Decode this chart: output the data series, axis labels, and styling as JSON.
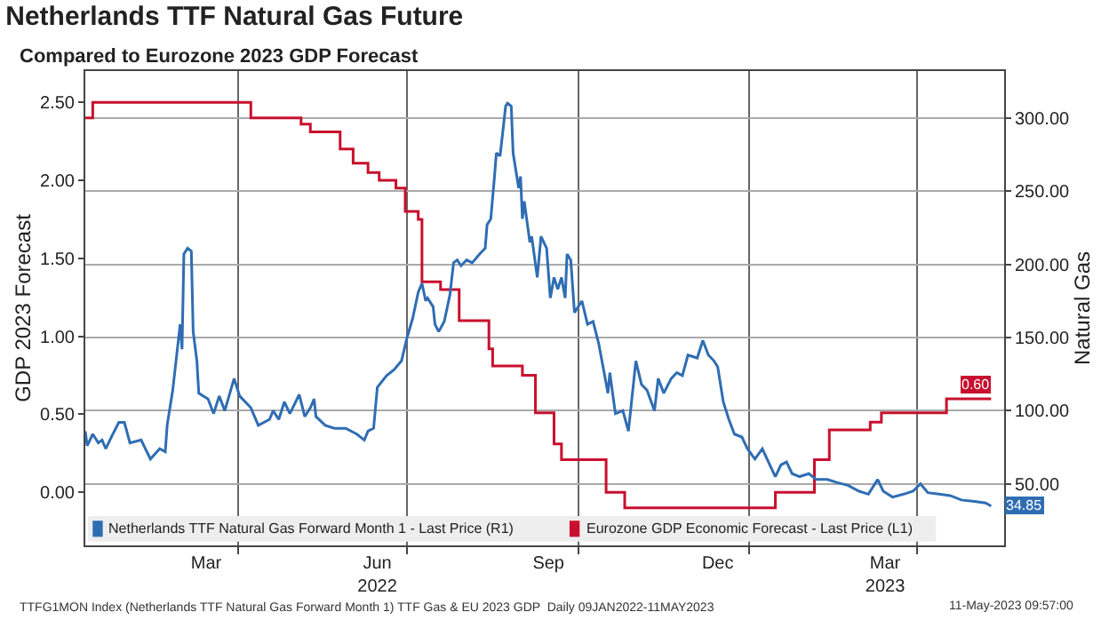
{
  "chart_data": {
    "type": "line",
    "title": "Netherlands TTF Natural Gas Future",
    "subtitle": "Compared to Eurozone 2023 GDP Forecast",
    "ylabel": "GDP 2023 Forecast",
    "y2label": "Natural Gas",
    "xlim": [
      "2022-01-09",
      "2023-05-18"
    ],
    "xticks": [
      {
        "value": "2022-03-15",
        "label": "Mar"
      },
      {
        "value": "2022-06-15",
        "label": "Jun\n2022"
      },
      {
        "value": "2022-09-15",
        "label": "Sep"
      },
      {
        "value": "2022-12-15",
        "label": "Dec"
      },
      {
        "value": "2023-03-15",
        "label": "Mar\n2023"
      },
      {
        "value": "2022-04-01",
        "label": null
      },
      {
        "value": "2022-07-01",
        "label": null
      },
      {
        "value": "2022-10-01",
        "label": null
      },
      {
        "value": "2023-01-01",
        "label": null
      },
      {
        "value": "2023-04-01",
        "label": null
      }
    ],
    "ylim": [
      -0.34,
      2.7
    ],
    "yticks": [
      {
        "value": 0,
        "label": "0.00"
      },
      {
        "value": 0.5,
        "label": "0.50"
      },
      {
        "value": 1,
        "label": "1.00"
      },
      {
        "value": 1.5,
        "label": "1.50"
      },
      {
        "value": 2,
        "label": "2.00"
      },
      {
        "value": 2.5,
        "label": "2.50"
      }
    ],
    "y2lim": [
      8,
      332
    ],
    "y2ticks": [
      {
        "value": 50,
        "label": "50.00"
      },
      {
        "value": 100,
        "label": "100.00"
      },
      {
        "value": 150,
        "label": "150.00"
      },
      {
        "value": 200,
        "label": "200.00"
      },
      {
        "value": 250,
        "label": "250.00"
      },
      {
        "value": 300,
        "label": "300.00"
      }
    ],
    "grid": true,
    "legend": "bottom",
    "series": [
      {
        "name": "Netherlands TTF Natural Gas Forward Month 1 - Last Price (R1)",
        "color": "#2f6db3",
        "axis": "y2",
        "x": [
          "2022-01-09",
          "2022-01-10",
          "2022-01-13",
          "2022-01-16",
          "2022-01-18",
          "2022-01-20",
          "2022-01-23",
          "2022-01-27",
          "2022-01-30",
          "2022-02-02",
          "2022-02-08",
          "2022-02-13",
          "2022-02-18",
          "2022-02-21",
          "2022-02-22",
          "2022-02-25",
          "2022-03-01",
          "2022-03-02",
          "2022-03-03",
          "2022-03-05",
          "2022-03-07",
          "2022-03-08",
          "2022-03-10",
          "2022-03-11",
          "2022-03-16",
          "2022-03-19",
          "2022-03-22",
          "2022-03-25",
          "2022-03-30",
          "2022-04-02",
          "2022-04-08",
          "2022-04-12",
          "2022-04-18",
          "2022-04-20",
          "2022-04-23",
          "2022-04-26",
          "2022-04-29",
          "2022-05-04",
          "2022-05-07",
          "2022-05-10",
          "2022-05-12",
          "2022-05-13",
          "2022-05-18",
          "2022-05-23",
          "2022-05-29",
          "2022-06-04",
          "2022-06-08",
          "2022-06-10",
          "2022-06-13",
          "2022-06-15",
          "2022-06-20",
          "2022-06-24",
          "2022-06-28",
          "2022-07-01",
          "2022-07-04",
          "2022-07-07",
          "2022-07-09",
          "2022-07-11",
          "2022-07-12",
          "2022-07-15",
          "2022-07-16",
          "2022-07-18",
          "2022-07-21",
          "2022-07-24",
          "2022-07-26",
          "2022-07-28",
          "2022-07-30",
          "2022-08-02",
          "2022-08-05",
          "2022-08-09",
          "2022-08-12",
          "2022-08-13",
          "2022-08-15",
          "2022-08-17",
          "2022-08-18",
          "2022-08-20",
          "2022-08-23",
          "2022-08-24",
          "2022-08-26",
          "2022-08-27",
          "2022-08-30",
          "2022-08-31",
          "2022-09-01",
          "2022-09-02",
          "2022-09-05",
          "2022-09-06",
          "2022-09-09",
          "2022-09-11",
          "2022-09-14",
          "2022-09-16",
          "2022-09-18",
          "2022-09-20",
          "2022-09-22",
          "2022-09-24",
          "2022-09-25",
          "2022-09-27",
          "2022-09-29",
          "2022-10-03",
          "2022-10-06",
          "2022-10-09",
          "2022-10-12",
          "2022-10-17",
          "2022-10-18",
          "2022-10-21",
          "2022-10-25",
          "2022-10-28",
          "2022-11-01",
          "2022-11-04",
          "2022-11-07",
          "2022-11-11",
          "2022-11-13",
          "2022-11-16",
          "2022-11-20",
          "2022-11-23",
          "2022-11-26",
          "2022-11-29",
          "2022-12-04",
          "2022-12-07",
          "2022-12-10",
          "2022-12-13",
          "2022-12-15",
          "2022-12-18",
          "2022-12-21",
          "2022-12-24",
          "2022-12-28",
          "2022-12-31",
          "2023-01-04",
          "2023-01-08",
          "2023-01-12",
          "2023-01-15",
          "2023-01-18",
          "2023-01-21",
          "2023-01-24",
          "2023-01-28",
          "2023-02-02",
          "2023-02-06",
          "2023-02-12",
          "2023-02-17",
          "2023-02-23",
          "2023-03-01",
          "2023-03-06",
          "2023-03-11",
          "2023-03-14",
          "2023-03-19",
          "2023-03-25",
          "2023-03-30",
          "2023-04-03",
          "2023-04-07",
          "2023-04-13",
          "2023-04-19",
          "2023-04-25",
          "2023-05-02",
          "2023-05-08",
          "2023-05-11"
        ],
        "values": [
          86,
          76,
          84,
          78,
          80,
          74,
          82,
          92,
          92,
          78,
          80,
          67,
          74,
          72,
          90,
          114,
          159,
          142,
          207,
          211,
          209,
          154,
          134,
          112,
          108,
          98,
          110,
          100,
          122,
          110,
          102,
          90,
          94,
          100,
          94,
          106,
          98,
          111,
          96,
          102,
          108,
          96,
          90,
          88,
          88,
          84,
          80,
          86,
          88,
          116,
          124,
          128,
          134,
          150,
          163,
          181,
          187,
          175,
          177,
          171,
          159,
          154,
          161,
          179,
          201,
          203,
          199,
          203,
          201,
          207,
          211,
          227,
          231,
          260,
          276,
          274,
          308,
          310,
          308,
          276,
          252,
          260,
          231,
          243,
          215,
          219,
          191,
          219,
          211,
          177,
          191,
          183,
          191,
          177,
          207,
          203,
          167,
          175,
          159,
          161,
          146,
          112,
          126,
          98,
          100,
          86,
          134,
          118,
          114,
          100,
          122,
          112,
          122,
          126,
          124,
          138,
          136,
          148,
          138,
          134,
          130,
          106,
          94,
          84,
          82,
          74,
          67,
          74,
          63,
          55,
          63,
          65,
          57,
          55,
          57,
          53,
          53,
          51,
          49,
          45,
          43,
          53,
          45,
          41,
          43,
          45,
          50,
          44,
          43,
          42,
          39,
          38,
          37,
          34.85
        ],
        "value_labels": [
          null,
          null,
          null,
          null,
          null,
          null,
          null,
          null,
          null,
          null,
          null,
          null,
          null,
          null,
          null,
          null,
          null,
          null,
          null,
          null,
          null,
          null,
          null,
          null,
          null,
          null,
          null,
          null,
          null,
          null,
          null,
          null,
          null,
          null,
          null,
          null,
          null,
          null,
          null,
          null,
          null,
          null,
          null,
          null,
          null,
          null,
          null,
          null,
          null,
          null,
          null,
          null,
          null,
          null,
          null,
          null,
          null,
          null,
          null,
          null,
          null,
          null,
          null,
          null,
          null,
          null,
          null,
          null,
          null,
          null,
          null,
          null,
          null,
          null,
          null,
          null,
          null,
          null,
          null,
          null,
          null,
          null,
          null,
          null,
          null,
          null,
          null,
          null,
          null,
          null,
          null,
          null,
          null,
          null,
          null,
          null,
          null,
          null,
          null,
          null,
          null,
          null,
          null,
          null,
          null,
          null,
          null,
          null,
          null,
          null,
          null,
          null,
          null,
          null,
          null,
          null,
          null,
          null,
          null,
          null,
          null,
          null,
          null,
          null,
          null,
          null,
          null,
          null,
          null,
          null,
          null,
          null,
          null,
          null,
          null,
          null,
          null,
          null,
          null,
          null,
          null,
          null,
          null,
          null,
          null,
          null,
          null,
          null,
          null,
          null,
          null,
          null,
          null,
          "34.85"
        ]
      },
      {
        "name": "Eurozone GDP Economic Forecast - Last Price (L1)",
        "color": "#c8102e",
        "type": "step",
        "x": [
          "2022-01-09",
          "2022-01-13",
          "2022-04-08",
          "2022-05-05",
          "2022-05-10",
          "2022-05-26",
          "2022-06-02",
          "2022-06-10",
          "2022-06-16",
          "2022-06-25",
          "2022-06-30",
          "2022-07-07",
          "2022-07-09",
          "2022-07-19",
          "2022-07-29",
          "2022-08-14",
          "2022-08-16",
          "2022-09-01",
          "2022-09-08",
          "2022-09-18",
          "2022-09-22",
          "2022-10-16",
          "2022-10-26",
          "2023-01-15",
          "2023-02-05",
          "2023-02-13",
          "2023-03-07",
          "2023-03-13",
          "2023-04-17",
          "2023-05-11"
        ],
        "values": [
          2.4,
          2.5,
          2.4,
          2.36,
          2.31,
          2.2,
          2.11,
          2.05,
          2.0,
          1.95,
          1.8,
          1.75,
          1.35,
          1.3,
          1.1,
          0.92,
          0.81,
          0.75,
          0.51,
          0.31,
          0.21,
          0.0,
          -0.1,
          0.0,
          0.21,
          0.4,
          0.45,
          0.51,
          0.6,
          0.6
        ],
        "value_labels": [
          null,
          null,
          null,
          null,
          null,
          null,
          null,
          null,
          null,
          null,
          null,
          null,
          null,
          null,
          null,
          null,
          null,
          null,
          null,
          null,
          null,
          null,
          null,
          null,
          null,
          null,
          null,
          null,
          null,
          "0.60"
        ]
      }
    ],
    "annotations": [
      "TTFG1MON Index (Netherlands TTF Natural Gas Forward Month 1) TTF Gas & EU 2023 GDP  Daily 09JAN2022-11MAY2023",
      "11-May-2023 09:57:00"
    ]
  }
}
